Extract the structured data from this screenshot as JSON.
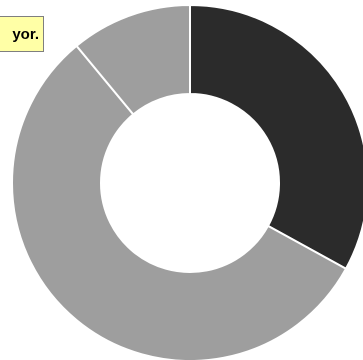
{
  "chart_data": {
    "type": "pie",
    "donut": true,
    "title": "",
    "slices": [
      {
        "value": 33,
        "color": "#2b2b2b"
      },
      {
        "value": 56,
        "color": "#9e9e9e"
      },
      {
        "value": 11,
        "color": "#9e9e9e"
      }
    ],
    "slice_border_color": "#ffffff",
    "legend": "none",
    "annotation": "yor."
  }
}
